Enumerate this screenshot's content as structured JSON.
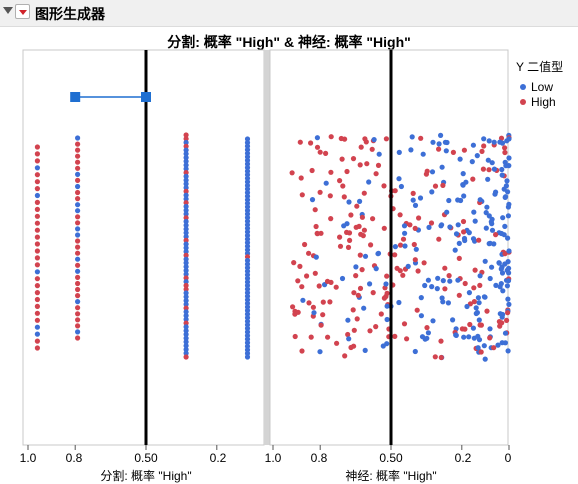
{
  "window": {
    "title": "图形生成器"
  },
  "plot": {
    "title": "分割: 概率 \"High\" & 神经: 概率 \"High\""
  },
  "legend": {
    "title": "Y 二值型",
    "items": [
      {
        "label": "Low",
        "color": "#3d6fd6"
      },
      {
        "label": "High",
        "color": "#d2434f"
      }
    ]
  },
  "icons": [
    "collapse-triangle-icon",
    "red-menu-triangle-icon"
  ],
  "chart_data": [
    {
      "type": "scatter",
      "xlabel": "分割: 概率 \"High\"",
      "x_ticks": [
        "1.0",
        "0.8",
        "0.50",
        "0.2"
      ],
      "x_reversed": true,
      "x_range": [
        1.0,
        0.0
      ],
      "reference_line_x": 0.5,
      "handle_segment": [
        0.8,
        0.5
      ],
      "columns_x": [
        0.96,
        0.79,
        0.33,
        0.07
      ],
      "series": [
        {
          "name": "Low",
          "color": "#3d6fd6"
        },
        {
          "name": "High",
          "color": "#d2434f"
        }
      ]
    },
    {
      "type": "scatter",
      "xlabel": "神经: 概率 \"High\"",
      "x_ticks": [
        "1.0",
        "0.8",
        "0.50",
        "0.2",
        "0"
      ],
      "x_reversed": true,
      "x_range": [
        1.0,
        0.0
      ],
      "reference_line_x": 0.5,
      "series": [
        {
          "name": "Low",
          "color": "#3d6fd6"
        },
        {
          "name": "High",
          "color": "#d2434f"
        }
      ]
    }
  ]
}
